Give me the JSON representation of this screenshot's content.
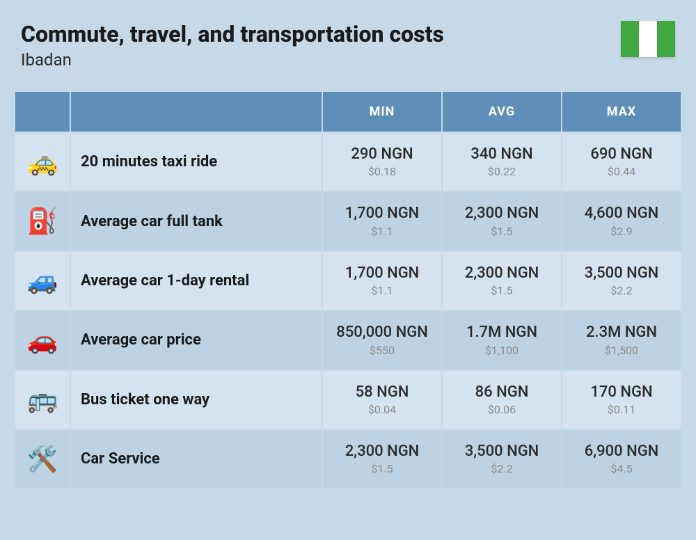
{
  "header": {
    "title": "Commute, travel, and transportation costs",
    "subtitle": "Ibadan"
  },
  "flag": {
    "stripes": [
      "#3fa83f",
      "#ffffff",
      "#3fa83f"
    ]
  },
  "table": {
    "columns": [
      "MIN",
      "AVG",
      "MAX"
    ],
    "header_bg": "#5f8fb8",
    "header_color": "#ffffff",
    "row_colors": [
      "#d4e3ef",
      "#bdd3e4"
    ],
    "ngn_color": "#2a2a2a",
    "usd_color": "#8a8a8a",
    "label_fontsize": 22,
    "ngn_fontsize": 22,
    "usd_fontsize": 16,
    "rows": [
      {
        "icon": "🚕",
        "icon_name": "taxi-icon",
        "label": "20 minutes taxi ride",
        "min_ngn": "290 NGN",
        "min_usd": "$0.18",
        "avg_ngn": "340 NGN",
        "avg_usd": "$0.22",
        "max_ngn": "690 NGN",
        "max_usd": "$0.44"
      },
      {
        "icon": "⛽",
        "icon_name": "fuel-pump-icon",
        "label": "Average car full tank",
        "min_ngn": "1,700 NGN",
        "min_usd": "$1.1",
        "avg_ngn": "2,300 NGN",
        "avg_usd": "$1.5",
        "max_ngn": "4,600 NGN",
        "max_usd": "$2.9"
      },
      {
        "icon": "🚙",
        "icon_name": "car-rental-icon",
        "label": "Average car 1-day rental",
        "min_ngn": "1,700 NGN",
        "min_usd": "$1.1",
        "avg_ngn": "2,300 NGN",
        "avg_usd": "$1.5",
        "max_ngn": "3,500 NGN",
        "max_usd": "$2.2"
      },
      {
        "icon": "🚗",
        "icon_name": "car-icon",
        "label": "Average car price",
        "min_ngn": "850,000 NGN",
        "min_usd": "$550",
        "avg_ngn": "1.7M NGN",
        "avg_usd": "$1,100",
        "max_ngn": "2.3M NGN",
        "max_usd": "$1,500"
      },
      {
        "icon": "🚌",
        "icon_name": "bus-icon",
        "label": "Bus ticket one way",
        "min_ngn": "58 NGN",
        "min_usd": "$0.04",
        "avg_ngn": "86 NGN",
        "avg_usd": "$0.06",
        "max_ngn": "170 NGN",
        "max_usd": "$0.11"
      },
      {
        "icon": "🛠️",
        "icon_name": "car-service-icon",
        "label": "Car Service",
        "min_ngn": "2,300 NGN",
        "min_usd": "$1.5",
        "avg_ngn": "3,500 NGN",
        "avg_usd": "$2.2",
        "max_ngn": "6,900 NGN",
        "max_usd": "$4.5"
      }
    ]
  }
}
